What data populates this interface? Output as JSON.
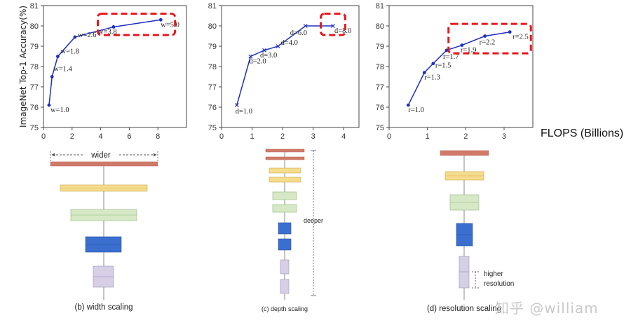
{
  "y_axis_label": "ImageNet Top-1 Accuracy(%)",
  "x_axis_label": "FLOPS (Billions)",
  "watermark": "知乎 @william",
  "colors": {
    "line": "#1f2fbf",
    "highlight": "#e8161b",
    "bar_red": "#d07a6a",
    "bar_yellow": "#f6dc8d",
    "bar_green": "#d6e8c6",
    "bar_blue": "#3a6fcf",
    "bar_lilac": "#d7cfe6"
  },
  "chart_data": [
    {
      "type": "line",
      "name": "width",
      "marker": "dot",
      "x": [
        0.39,
        0.6,
        1.0,
        2.2,
        4.9,
        8.2
      ],
      "y": [
        76.1,
        77.5,
        78.5,
        79.45,
        79.95,
        80.3
      ],
      "labels": [
        "w=1.0",
        "w=1.4",
        "w=1.8",
        "w=2.6",
        "w=3.8",
        "w=5.0"
      ],
      "xlim": [
        0,
        10
      ],
      "ylim": [
        75,
        81
      ],
      "xticks": [
        "0",
        "2",
        "4",
        "6",
        "8"
      ],
      "yticks": [
        "75",
        "76",
        "77",
        "78",
        "79",
        "80",
        "81"
      ],
      "highlight": {
        "x": [
          3.8,
          9.2
        ],
        "y": [
          79.55,
          80.6
        ]
      }
    },
    {
      "type": "line",
      "name": "depth",
      "marker": "x",
      "x": [
        0.5,
        0.95,
        1.4,
        1.85,
        2.75,
        3.65
      ],
      "y": [
        76.1,
        78.5,
        78.8,
        79.0,
        80.0,
        80.0
      ],
      "labels": [
        "d=1.0",
        "d=2.0",
        "d=3.0",
        "d=4.0",
        "d=6.0",
        "d=8.0"
      ],
      "xlim": [
        0,
        4.5
      ],
      "ylim": [
        75,
        81
      ],
      "xticks": [
        "0",
        "1",
        "2",
        "3",
        "4"
      ],
      "yticks": [
        "75",
        "76",
        "77",
        "78",
        "79",
        "80",
        "81"
      ],
      "highlight": {
        "x": [
          3.25,
          4.05
        ],
        "y": [
          79.55,
          80.6
        ]
      }
    },
    {
      "type": "line",
      "name": "resolution",
      "marker": "dot",
      "x": [
        0.5,
        0.92,
        1.15,
        1.5,
        1.9,
        2.5,
        3.15
      ],
      "y": [
        76.1,
        77.7,
        78.15,
        78.8,
        79.05,
        79.5,
        79.7
      ],
      "labels": [
        "r=1.0",
        "r=1.3",
        "r=1.5",
        "r=1.7",
        "r=1.9",
        "r=2.2",
        "r=2.5"
      ],
      "xlim": [
        0,
        3.75
      ],
      "ylim": [
        75,
        81
      ],
      "xticks": [
        "0",
        "1",
        "2",
        "3"
      ],
      "yticks": [
        "75",
        "76",
        "77",
        "78",
        "79",
        "80",
        "81"
      ],
      "highlight": {
        "x": [
          1.55,
          3.7
        ],
        "y": [
          78.65,
          80.1
        ]
      }
    }
  ],
  "diagrams": {
    "width": {
      "caption": "(b) width scaling",
      "annotation": "wider"
    },
    "depth": {
      "caption": "(c) depth scaling",
      "annotation": "deeper"
    },
    "resolution": {
      "caption": "(d) resolution scaling",
      "annotation_line1": "higher",
      "annotation_line2": "resolution"
    }
  }
}
